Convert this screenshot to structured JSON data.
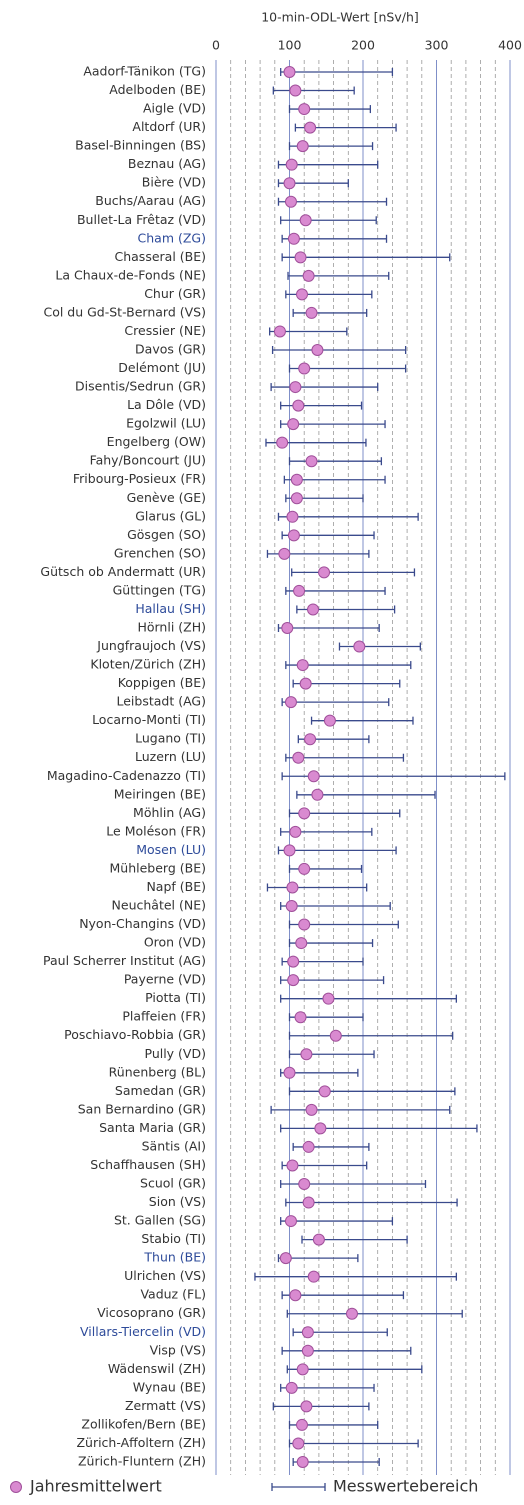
{
  "chart_data": {
    "type": "range_dot",
    "xlabel": "10-min-ODL-Wert [nSv/h]",
    "xlim": [
      0,
      400
    ],
    "xticks": [
      0,
      100,
      200,
      300,
      400
    ],
    "minor_grid_step": 20,
    "grid": true,
    "highlight_color": "#2e4b9a",
    "highlighted_categories": [
      9,
      29,
      42,
      64,
      68
    ],
    "categories": [
      "Aadorf-Tänikon (TG)",
      "Adelboden (BE)",
      "Aigle (VD)",
      "Altdorf (UR)",
      "Basel-Binningen (BS)",
      "Beznau (AG)",
      "Bière (VD)",
      "Buchs/Aarau (AG)",
      "Bullet-La Frêtaz (VD)",
      "Cham (ZG)",
      "Chasseral (BE)",
      "La Chaux-de-Fonds (NE)",
      "Chur (GR)",
      "Col du Gd-St-Bernard (VS)",
      "Cressier (NE)",
      "Davos (GR)",
      "Delémont (JU)",
      "Disentis/Sedrun (GR)",
      "La Dôle (VD)",
      "Egolzwil (LU)",
      "Engelberg (OW)",
      "Fahy/Boncourt (JU)",
      "Fribourg-Posieux (FR)",
      "Genève (GE)",
      "Glarus (GL)",
      "Gösgen (SO)",
      "Grenchen (SO)",
      "Gütsch ob Andermatt (UR)",
      "Güttingen (TG)",
      "Hallau (SH)",
      "Hörnli (ZH)",
      "Jungfraujoch (VS)",
      "Kloten/Zürich (ZH)",
      "Koppigen (BE)",
      "Leibstadt (AG)",
      "Locarno-Monti (TI)",
      "Lugano (TI)",
      "Luzern (LU)",
      "Magadino-Cadenazzo (TI)",
      "Meiringen (BE)",
      "Möhlin (AG)",
      "Le Moléson (FR)",
      "Mosen (LU)",
      "Mühleberg (BE)",
      "Napf (BE)",
      "Neuchâtel (NE)",
      "Nyon-Changins (VD)",
      "Oron (VD)",
      "Paul Scherrer Institut (AG)",
      "Payerne (VD)",
      "Piotta (TI)",
      "Plaffeien (FR)",
      "Poschiavo-Robbia (GR)",
      "Pully (VD)",
      "Rünenberg (BL)",
      "Samedan (GR)",
      "San Bernardino (GR)",
      "Santa Maria (GR)",
      "Säntis (AI)",
      "Schaffhausen (SH)",
      "Scuol (GR)",
      "Sion (VS)",
      "St. Gallen (SG)",
      "Stabio (TI)",
      "Thun (BE)",
      "Ulrichen (VS)",
      "Vaduz (FL)",
      "Vicosoprano (GR)",
      "Villars-Tiercelin (VD)",
      "Visp (VS)",
      "Wädenswil (ZH)",
      "Wynau (BE)",
      "Zermatt (VS)",
      "Zollikofen/Bern (BE)",
      "Zürich-Affoltern (ZH)",
      "Zürich-Fluntern (ZH)"
    ],
    "series": [
      {
        "name": "Jahresmittelwert",
        "color": "#d98ad0",
        "values": [
          100,
          108,
          120,
          128,
          118,
          103,
          100,
          102,
          122,
          106,
          115,
          126,
          117,
          130,
          87,
          138,
          120,
          108,
          112,
          105,
          90,
          130,
          110,
          110,
          104,
          106,
          93,
          147,
          113,
          132,
          97,
          195,
          118,
          122,
          102,
          155,
          128,
          112,
          133,
          138,
          120,
          108,
          100,
          120,
          104,
          103,
          120,
          116,
          105,
          105,
          153,
          115,
          163,
          123,
          100,
          148,
          130,
          142,
          126,
          104,
          120,
          126,
          102,
          140,
          95,
          133,
          108,
          185,
          125,
          125,
          118,
          103,
          123,
          117,
          112,
          118
        ]
      }
    ],
    "range": {
      "name": "Messwertebereich",
      "color": "#3a4a8c",
      "min": [
        88,
        78,
        100,
        108,
        100,
        85,
        85,
        85,
        88,
        90,
        90,
        98,
        95,
        105,
        73,
        77,
        100,
        75,
        88,
        88,
        68,
        100,
        93,
        95,
        85,
        90,
        70,
        103,
        95,
        110,
        85,
        168,
        95,
        105,
        90,
        130,
        112,
        95,
        90,
        110,
        100,
        88,
        85,
        100,
        70,
        88,
        100,
        100,
        90,
        88,
        88,
        100,
        100,
        100,
        88,
        100,
        75,
        88,
        105,
        90,
        88,
        95,
        88,
        117,
        85,
        53,
        90,
        97,
        105,
        90,
        97,
        88,
        78,
        100,
        100,
        105
      ],
      "max": [
        240,
        188,
        210,
        245,
        213,
        220,
        180,
        232,
        218,
        232,
        318,
        235,
        212,
        205,
        178,
        258,
        258,
        220,
        198,
        230,
        204,
        225,
        230,
        200,
        275,
        215,
        208,
        270,
        230,
        243,
        222,
        278,
        265,
        250,
        235,
        268,
        208,
        255,
        393,
        298,
        250,
        212,
        245,
        198,
        205,
        237,
        248,
        213,
        200,
        228,
        327,
        200,
        322,
        215,
        193,
        325,
        318,
        355,
        208,
        205,
        285,
        328,
        240,
        260,
        193,
        327,
        255,
        335,
        233,
        265,
        280,
        215,
        208,
        220,
        275,
        222
      ]
    }
  }
}
